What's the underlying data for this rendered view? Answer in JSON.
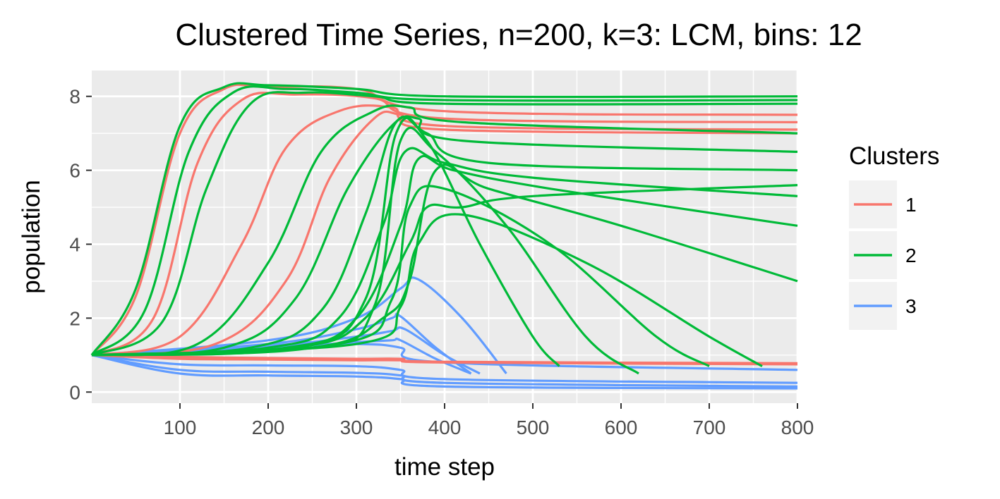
{
  "chart_data": {
    "type": "line",
    "title": "Clustered Time Series, n=200, k=3: LCM, bins: 12",
    "xlabel": "time step",
    "ylabel": "population",
    "xlim": [
      0,
      800
    ],
    "ylim": [
      -0.3,
      8.7
    ],
    "x_ticks": [
      100,
      200,
      300,
      400,
      500,
      600,
      700,
      800
    ],
    "y_ticks": [
      0,
      2,
      4,
      6,
      8
    ],
    "grid": true,
    "legend": {
      "title": "Clusters",
      "position": "right",
      "entries": [
        {
          "label": "1",
          "color": "#F8766D"
        },
        {
          "label": "2",
          "color": "#00BA38"
        },
        {
          "label": "3",
          "color": "#619CFF"
        }
      ]
    },
    "series": [
      {
        "cluster": "2",
        "x": [
          0,
          50,
          100,
          150,
          200,
          300,
          400,
          800
        ],
        "y": [
          1.0,
          2.8,
          7.2,
          8.25,
          8.3,
          8.2,
          8.0,
          8.0
        ]
      },
      {
        "cluster": "2",
        "x": [
          0,
          60,
          110,
          160,
          220,
          300,
          400,
          800
        ],
        "y": [
          1.0,
          2.2,
          6.5,
          8.1,
          8.2,
          8.1,
          7.9,
          7.9
        ]
      },
      {
        "cluster": "2",
        "x": [
          0,
          80,
          130,
          180,
          240,
          320,
          400,
          800
        ],
        "y": [
          1.0,
          1.9,
          5.5,
          7.8,
          8.1,
          8.0,
          7.8,
          7.8
        ]
      },
      {
        "cluster": "1",
        "x": [
          0,
          50,
          100,
          150,
          200,
          300,
          400,
          800
        ],
        "y": [
          1.0,
          2.6,
          7.0,
          8.2,
          8.25,
          8.2,
          7.6,
          7.5
        ]
      },
      {
        "cluster": "1",
        "x": [
          0,
          70,
          120,
          170,
          230,
          320,
          400,
          800
        ],
        "y": [
          1.0,
          2.0,
          6.2,
          7.9,
          8.05,
          7.95,
          7.4,
          7.3
        ]
      },
      {
        "cluster": "1",
        "x": [
          0,
          100,
          170,
          220,
          280,
          340,
          400,
          800
        ],
        "y": [
          1.0,
          1.5,
          4.0,
          6.6,
          7.6,
          7.7,
          7.2,
          7.1
        ]
      },
      {
        "cluster": "1",
        "x": [
          0,
          140,
          220,
          270,
          320,
          350,
          400,
          800
        ],
        "y": [
          1.0,
          1.3,
          3.0,
          5.8,
          7.4,
          7.5,
          7.1,
          7.0
        ]
      },
      {
        "cluster": "2",
        "x": [
          0,
          120,
          200,
          260,
          320,
          360,
          420,
          800
        ],
        "y": [
          1.0,
          1.3,
          3.5,
          6.5,
          7.6,
          7.7,
          7.3,
          7.0
        ]
      },
      {
        "cluster": "2",
        "x": [
          0,
          150,
          230,
          290,
          340,
          370,
          420,
          800
        ],
        "y": [
          1.0,
          1.2,
          2.5,
          5.5,
          7.2,
          7.4,
          6.8,
          6.5
        ]
      },
      {
        "cluster": "2",
        "x": [
          0,
          180,
          260,
          310,
          345,
          380,
          450,
          800
        ],
        "y": [
          1.0,
          1.2,
          2.2,
          4.8,
          7.3,
          7.0,
          6.2,
          6.0
        ]
      },
      {
        "cluster": "2",
        "x": [
          0,
          200,
          280,
          330,
          355,
          400,
          500,
          800
        ],
        "y": [
          1.0,
          1.2,
          2.0,
          4.5,
          6.5,
          6.2,
          5.8,
          5.3
        ]
      },
      {
        "cluster": "2",
        "x": [
          0,
          220,
          300,
          350,
          370,
          410,
          520,
          800
        ],
        "y": [
          1.0,
          1.2,
          2.0,
          4.5,
          6.3,
          6.0,
          5.5,
          4.5
        ]
      },
      {
        "cluster": "2",
        "x": [
          0,
          230,
          310,
          360,
          380,
          420,
          500,
          800
        ],
        "y": [
          1.0,
          1.2,
          2.0,
          4.0,
          5.0,
          5.0,
          5.3,
          5.6
        ]
      },
      {
        "cluster": "2",
        "x": [
          0,
          250,
          330,
          360,
          390,
          450,
          600,
          800
        ],
        "y": [
          1.0,
          1.2,
          2.0,
          3.0,
          6.0,
          5.5,
          4.5,
          3.0
        ]
      },
      {
        "cluster": "2",
        "x": [
          0,
          230,
          310,
          345,
          380,
          440,
          500,
          530
        ],
        "y": [
          1.0,
          1.2,
          2.5,
          7.0,
          6.8,
          4.0,
          1.5,
          0.7
        ]
      },
      {
        "cluster": "2",
        "x": [
          0,
          250,
          320,
          350,
          390,
          470,
          560,
          620
        ],
        "y": [
          1.0,
          1.2,
          2.3,
          6.8,
          6.5,
          4.5,
          1.5,
          0.5
        ]
      },
      {
        "cluster": "2",
        "x": [
          0,
          280,
          340,
          360,
          400,
          520,
          640,
          700
        ],
        "y": [
          1.0,
          1.3,
          2.5,
          5.0,
          5.5,
          4.0,
          1.5,
          0.7
        ]
      },
      {
        "cluster": "2",
        "x": [
          0,
          300,
          350,
          370,
          420,
          560,
          700,
          760
        ],
        "y": [
          1.0,
          1.3,
          2.3,
          4.0,
          4.8,
          3.5,
          1.5,
          0.7
        ]
      },
      {
        "cluster": "1",
        "x": [
          0,
          100,
          200,
          300,
          350,
          400,
          800
        ],
        "y": [
          1.0,
          0.95,
          0.92,
          0.9,
          0.9,
          0.82,
          0.78
        ]
      },
      {
        "cluster": "1",
        "x": [
          0,
          100,
          200,
          300,
          350,
          400,
          800
        ],
        "y": [
          1.0,
          0.9,
          0.88,
          0.86,
          0.86,
          0.8,
          0.75
        ]
      },
      {
        "cluster": "3",
        "x": [
          0,
          200,
          300,
          350,
          370,
          420,
          470
        ],
        "y": [
          1.0,
          1.4,
          2.0,
          2.8,
          3.05,
          2.0,
          0.5
        ]
      },
      {
        "cluster": "3",
        "x": [
          0,
          200,
          300,
          340,
          350,
          390,
          430
        ],
        "y": [
          1.0,
          1.3,
          1.7,
          2.0,
          2.05,
          1.2,
          0.5
        ]
      },
      {
        "cluster": "3",
        "x": [
          0,
          200,
          300,
          340,
          355,
          400,
          440
        ],
        "y": [
          1.0,
          1.25,
          1.5,
          1.65,
          1.7,
          1.0,
          0.5
        ]
      },
      {
        "cluster": "3",
        "x": [
          0,
          200,
          300,
          340,
          350,
          390,
          430
        ],
        "y": [
          1.0,
          1.2,
          1.35,
          1.4,
          1.4,
          0.9,
          0.5
        ]
      },
      {
        "cluster": "3",
        "x": [
          0,
          100,
          200,
          300,
          350,
          400,
          800
        ],
        "y": [
          1.0,
          1.15,
          1.25,
          1.3,
          1.2,
          0.8,
          0.6
        ]
      },
      {
        "cluster": "3",
        "x": [
          0,
          100,
          200,
          300,
          350,
          400,
          800
        ],
        "y": [
          1.0,
          0.75,
          0.72,
          0.7,
          0.6,
          0.35,
          0.25
        ]
      },
      {
        "cluster": "3",
        "x": [
          0,
          100,
          200,
          300,
          350,
          400,
          800
        ],
        "y": [
          1.0,
          0.6,
          0.55,
          0.52,
          0.45,
          0.25,
          0.15
        ]
      },
      {
        "cluster": "3",
        "x": [
          0,
          100,
          200,
          300,
          350,
          400,
          800
        ],
        "y": [
          1.0,
          0.5,
          0.45,
          0.42,
          0.35,
          0.15,
          0.1
        ]
      }
    ]
  }
}
